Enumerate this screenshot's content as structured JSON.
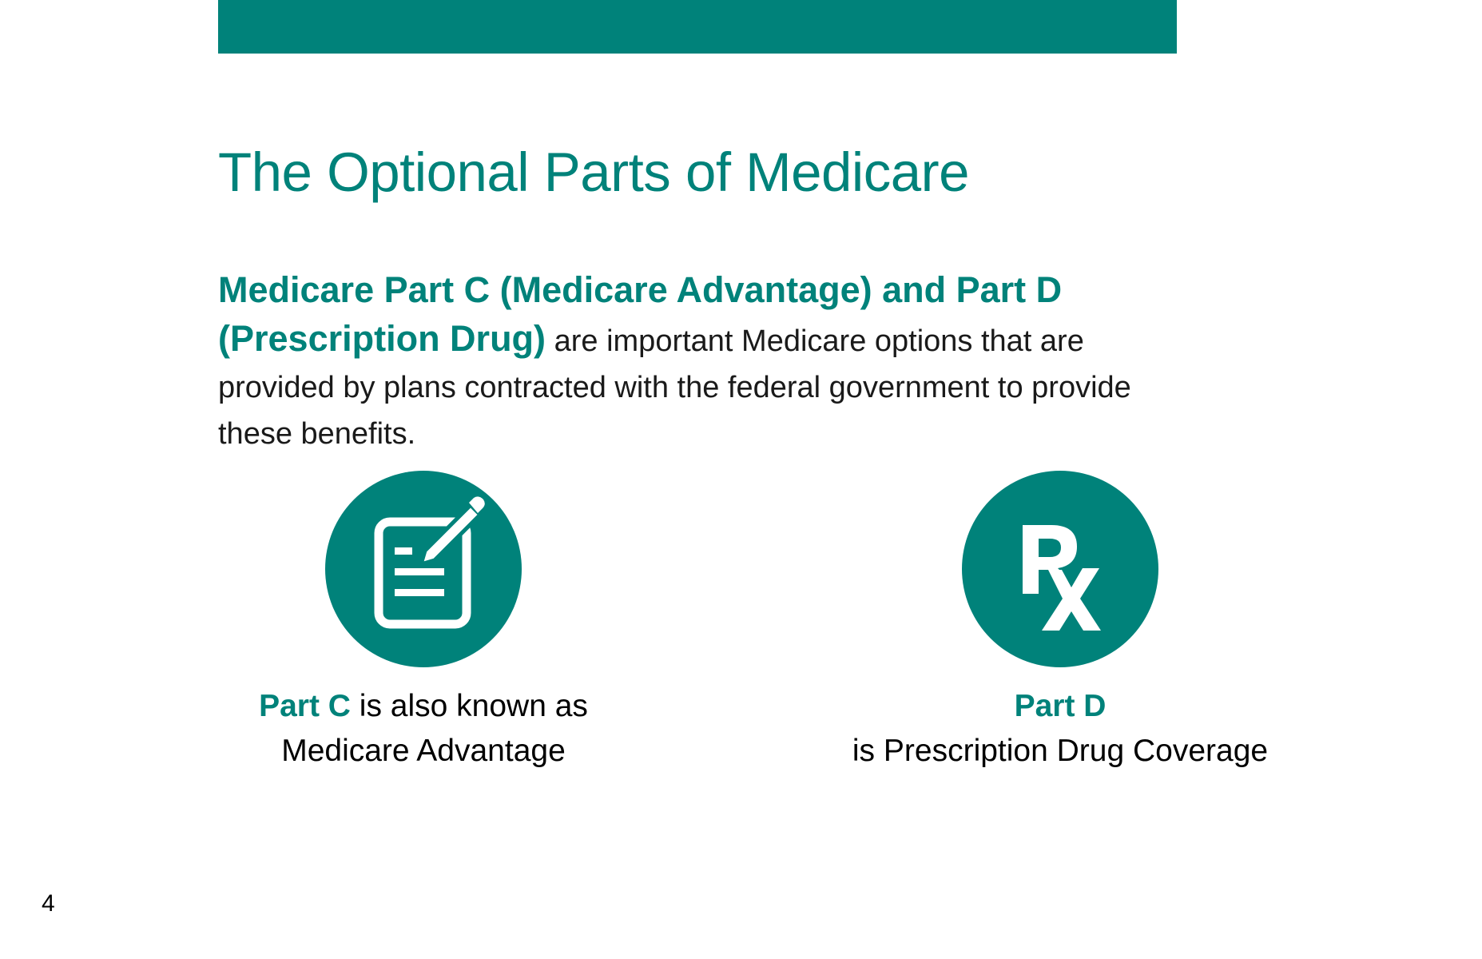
{
  "slide": {
    "title": "The Optional Parts of Medicare",
    "intro_highlight_line1": "Medicare Part C (Medicare Advantage) and Part D",
    "intro_highlight_line2": "(Prescription Drug)",
    "intro_rest": " are important Medicare options that are provided by plans contracted with the federal government to provide these benefits.",
    "part_c": {
      "icon": "document-pencil-icon",
      "label": "Part C",
      "text1": " is also known as",
      "text2": "Medicare Advantage"
    },
    "part_d": {
      "icon": "rx-icon",
      "icon_text": "Rx",
      "label": "Part D",
      "text": "is Prescription Drug Coverage"
    },
    "page_number": "4"
  },
  "colors": {
    "accent": "#00827A",
    "text": "#1a1a1a"
  }
}
